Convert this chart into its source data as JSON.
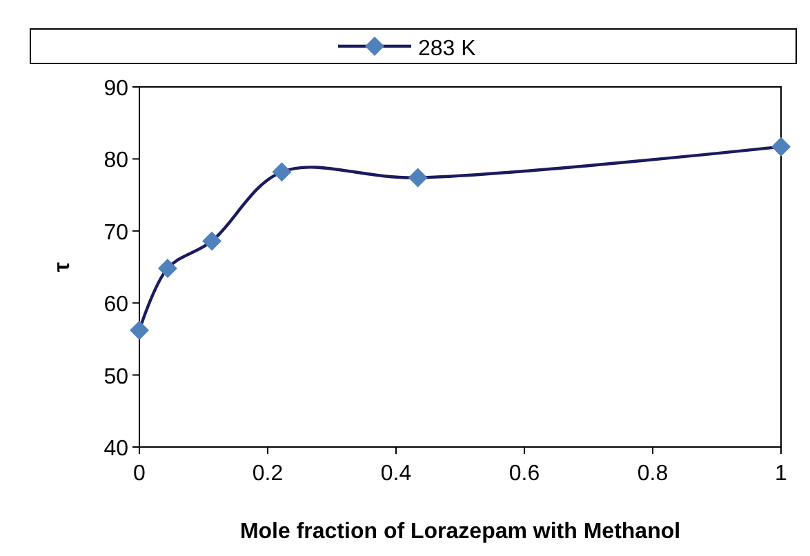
{
  "chart_data": {
    "type": "line",
    "xlabel": "Mole fraction of Lorazepam with Methanol",
    "ylabel": "τ",
    "x": [
      0,
      0.044,
      0.113,
      0.222,
      0.434,
      1
    ],
    "series": [
      {
        "name": "283 K",
        "color": "#1a1a5e",
        "values": [
          56.2,
          64.8,
          68.6,
          78.2,
          77.4,
          81.7
        ]
      }
    ],
    "xlim": [
      0,
      1
    ],
    "xticks": [
      0,
      0.2,
      0.4,
      0.6,
      0.8,
      1
    ],
    "ylim": [
      40,
      90
    ],
    "yticks": [
      40,
      50,
      60,
      70,
      80,
      90
    ],
    "grid": false,
    "legend": "top",
    "marker": "diamond",
    "line_style": "solid"
  }
}
